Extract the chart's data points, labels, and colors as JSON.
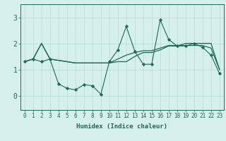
{
  "xlabel": "Humidex (Indice chaleur)",
  "bg_color": "#d5efea",
  "grid_color": "#b0ddd5",
  "line_color": "#1a6b5a",
  "xlim": [
    -0.5,
    23.5
  ],
  "ylim": [
    -0.55,
    3.5
  ],
  "xticks": [
    0,
    1,
    2,
    3,
    4,
    5,
    6,
    7,
    8,
    9,
    10,
    11,
    12,
    13,
    14,
    15,
    16,
    17,
    18,
    19,
    20,
    21,
    22,
    23
  ],
  "yticks": [
    0,
    1,
    2,
    3
  ],
  "series1_x": [
    0,
    1,
    2,
    3,
    4,
    5,
    6,
    7,
    8,
    9,
    10,
    11,
    12,
    13,
    14,
    15,
    16,
    17,
    18,
    19,
    20,
    21,
    22,
    23
  ],
  "series1_y": [
    1.3,
    1.4,
    1.3,
    1.4,
    0.45,
    0.28,
    0.22,
    0.42,
    0.38,
    0.05,
    1.3,
    1.75,
    2.65,
    1.7,
    1.2,
    1.2,
    2.9,
    2.15,
    1.9,
    1.9,
    2.0,
    1.85,
    1.55,
    0.85
  ],
  "series2_x": [
    0,
    1,
    2,
    3,
    4,
    5,
    6,
    7,
    8,
    9,
    10,
    11,
    12,
    13,
    14,
    15,
    16,
    17,
    18,
    19,
    20,
    21,
    22,
    23
  ],
  "series2_y": [
    1.3,
    1.4,
    2.0,
    1.4,
    1.35,
    1.3,
    1.25,
    1.25,
    1.25,
    1.25,
    1.25,
    1.3,
    1.3,
    1.5,
    1.65,
    1.65,
    1.75,
    1.9,
    1.9,
    2.0,
    2.0,
    2.0,
    2.0,
    1.0
  ],
  "series3_x": [
    0,
    1,
    2,
    3,
    4,
    5,
    6,
    7,
    8,
    9,
    10,
    11,
    12,
    13,
    14,
    15,
    16,
    17,
    18,
    19,
    20,
    21,
    22,
    23
  ],
  "series3_y": [
    1.3,
    1.4,
    2.0,
    1.4,
    1.35,
    1.3,
    1.25,
    1.25,
    1.25,
    1.25,
    1.25,
    1.4,
    1.55,
    1.65,
    1.72,
    1.72,
    1.82,
    1.92,
    1.92,
    1.92,
    1.92,
    1.92,
    1.82,
    1.0
  ],
  "xlabel_fontsize": 6.5,
  "tick_fontsize": 5.5,
  "ytick_fontsize": 7
}
